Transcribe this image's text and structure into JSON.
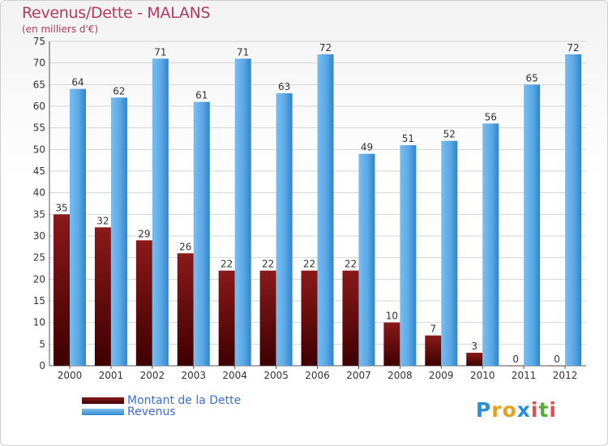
{
  "header": {
    "title": "Revenus/Dette - MALANS",
    "subtitle": "(en milliers d'€)"
  },
  "legend": {
    "debt_label": "Montant de la Dette",
    "revenue_label": "Revenus"
  },
  "logo": {
    "text": "Proxiti"
  },
  "colors": {
    "debt_top": "#8a1a1a",
    "debt_bottom": "#3f0000",
    "revenue_top": "#6fb8ee",
    "revenue_bottom": "#2e7fc4",
    "title": "#b43a5f",
    "legend_text": "#3b6fd8"
  },
  "chart_data": {
    "type": "bar",
    "title": "Revenus/Dette - MALANS",
    "subtitle": "(en milliers d'€)",
    "xlabel": "",
    "ylabel": "",
    "ylim": [
      0,
      75
    ],
    "yticks": [
      0,
      5,
      10,
      15,
      20,
      25,
      30,
      35,
      40,
      45,
      50,
      55,
      60,
      65,
      70,
      75
    ],
    "grid": true,
    "legend_position": "bottom-left",
    "categories": [
      "2000",
      "2001",
      "2002",
      "2003",
      "2004",
      "2005",
      "2006",
      "2007",
      "2008",
      "2009",
      "2010",
      "2011",
      "2012"
    ],
    "series": [
      {
        "name": "Montant de la Dette",
        "values": [
          35,
          32,
          29,
          26,
          22,
          22,
          22,
          22,
          10,
          7,
          3,
          0,
          0
        ]
      },
      {
        "name": "Revenus",
        "values": [
          64,
          62,
          71,
          61,
          71,
          63,
          72,
          49,
          51,
          52,
          56,
          65,
          72
        ]
      }
    ]
  }
}
